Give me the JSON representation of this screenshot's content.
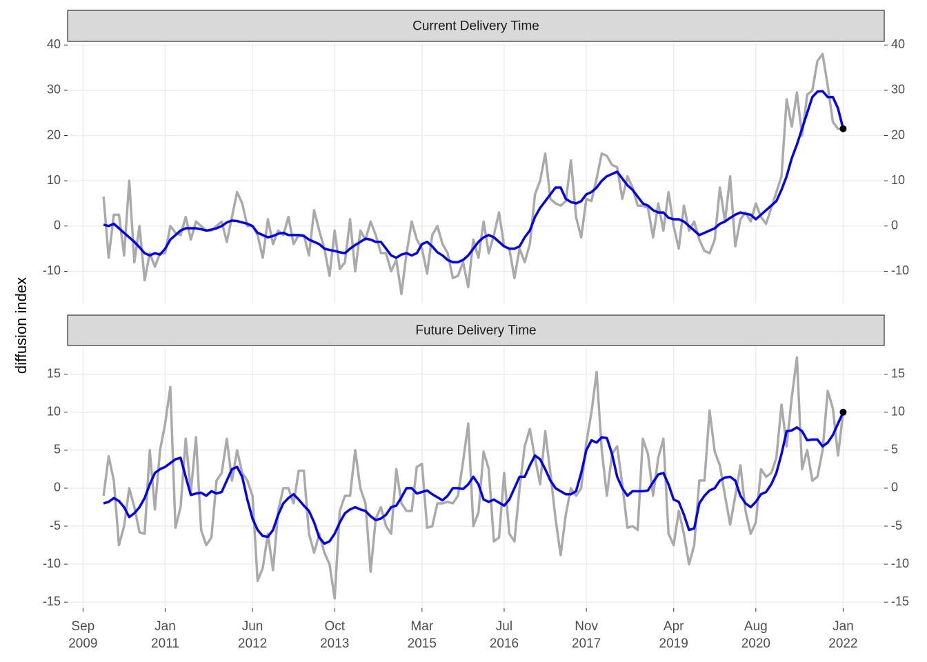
{
  "ylabel": "diffusion index",
  "chart_data": [
    {
      "type": "line",
      "title": "Current Delivery Time",
      "x": [
        "2010-01",
        "2010-02",
        "2010-03",
        "2010-04",
        "2010-05",
        "2010-06",
        "2010-07",
        "2010-08",
        "2010-09",
        "2010-10",
        "2010-11",
        "2010-12",
        "2011-01",
        "2011-02",
        "2011-03",
        "2011-04",
        "2011-05",
        "2011-06",
        "2011-07",
        "2011-08",
        "2011-09",
        "2011-10",
        "2011-11",
        "2011-12",
        "2012-01",
        "2012-02",
        "2012-03",
        "2012-04",
        "2012-05",
        "2012-06",
        "2012-07",
        "2012-08",
        "2012-09",
        "2012-10",
        "2012-11",
        "2012-12",
        "2013-01",
        "2013-02",
        "2013-03",
        "2013-04",
        "2013-05",
        "2013-06",
        "2013-07",
        "2013-08",
        "2013-09",
        "2013-10",
        "2013-11",
        "2013-12",
        "2014-01",
        "2014-02",
        "2014-03",
        "2014-04",
        "2014-05",
        "2014-06",
        "2014-07",
        "2014-08",
        "2014-09",
        "2014-10",
        "2014-11",
        "2014-12",
        "2015-01",
        "2015-02",
        "2015-03",
        "2015-04",
        "2015-05",
        "2015-06",
        "2015-07",
        "2015-08",
        "2015-09",
        "2015-10",
        "2015-11",
        "2015-12",
        "2016-01",
        "2016-02",
        "2016-03",
        "2016-04",
        "2016-05",
        "2016-06",
        "2016-07",
        "2016-08",
        "2016-09",
        "2016-10",
        "2016-11",
        "2016-12",
        "2017-01",
        "2017-02",
        "2017-03",
        "2017-04",
        "2017-05",
        "2017-06",
        "2017-07",
        "2017-08",
        "2017-09",
        "2017-10",
        "2017-11",
        "2017-12",
        "2018-01",
        "2018-02",
        "2018-03",
        "2018-04",
        "2018-05",
        "2018-06",
        "2018-07",
        "2018-08",
        "2018-09",
        "2018-10",
        "2018-11",
        "2018-12",
        "2019-01",
        "2019-02",
        "2019-03",
        "2019-04",
        "2019-05",
        "2019-06",
        "2019-07",
        "2019-08",
        "2019-09",
        "2019-10",
        "2019-11",
        "2019-12",
        "2020-01",
        "2020-02",
        "2020-03",
        "2020-04",
        "2020-05",
        "2020-06",
        "2020-07",
        "2020-08",
        "2020-09",
        "2020-10",
        "2020-11",
        "2020-12",
        "2021-01",
        "2021-02",
        "2021-03",
        "2021-04",
        "2021-05",
        "2021-06",
        "2021-07",
        "2021-08",
        "2021-09",
        "2021-10",
        "2021-11",
        "2021-12",
        "2022-01"
      ],
      "series": [
        {
          "color": "#aaaaaa",
          "values": [
            6.5,
            -7,
            2.5,
            2.5,
            -6.5,
            10,
            -8,
            0,
            -12,
            -6,
            -9,
            -6,
            -6,
            0,
            -1.5,
            -2,
            2,
            -3,
            1,
            0,
            -1,
            -1,
            0,
            1,
            -3.5,
            2,
            7.5,
            5,
            0,
            0,
            -2,
            -7,
            1.5,
            -4,
            -1,
            -2,
            2,
            -4,
            -2,
            -2,
            -6.5,
            3.5,
            -1,
            -5,
            -11,
            -1,
            -9.5,
            -8,
            1.5,
            -10,
            -1,
            -3,
            1,
            -2,
            -6,
            -6,
            -10,
            -7.5,
            -15,
            -6,
            1,
            -3,
            -5,
            -10.5,
            -2,
            0,
            -4,
            -6,
            -11.5,
            -11,
            -8,
            -13.5,
            -3,
            -7,
            1,
            -6,
            -2,
            3,
            -4.5,
            -5,
            -11.5,
            -5,
            -8,
            -4,
            7,
            10,
            16,
            6,
            5,
            4.5,
            5.5,
            14.5,
            2,
            -2.5,
            6,
            5.5,
            10.5,
            16,
            15.5,
            13.5,
            13,
            6,
            11,
            8.5,
            4.5,
            4.5,
            4,
            -2.5,
            5,
            -1,
            7.5,
            0,
            -5,
            4.5,
            -1,
            1,
            -3,
            -5.5,
            -6,
            -3,
            8.5,
            1,
            11,
            -4.5,
            1.5,
            3,
            1,
            5,
            2,
            0.5,
            4,
            7.5,
            11,
            28,
            22,
            29.5,
            20,
            29,
            30,
            36.5,
            38,
            31,
            23,
            21.5,
            21.5
          ]
        },
        {
          "color": "#0000ff",
          "endpoint": true,
          "values": [
            0.3,
            0,
            0.5,
            -0.5,
            -1.5,
            -2.5,
            -3.5,
            -4.7,
            -6,
            -6.5,
            -6,
            -6.3,
            -5,
            -3,
            -2,
            -1,
            -0.5,
            -0.5,
            -0.5,
            -0.7,
            -1,
            -0.8,
            -0.5,
            0,
            0.8,
            1.2,
            1.1,
            0.8,
            0.5,
            0,
            -1.5,
            -2,
            -2.5,
            -2.2,
            -1.7,
            -1.5,
            -2,
            -2,
            -2,
            -2.2,
            -3,
            -3.5,
            -4,
            -5,
            -5.3,
            -5.5,
            -5.8,
            -6,
            -5,
            -4.2,
            -3.5,
            -2.8,
            -3,
            -3.5,
            -3.5,
            -5,
            -6.5,
            -7,
            -6.3,
            -6,
            -6.5,
            -6,
            -4,
            -3.5,
            -4.5,
            -5.8,
            -6.5,
            -7.5,
            -8,
            -8,
            -7.5,
            -6.5,
            -5,
            -3.5,
            -2.5,
            -2,
            -2.5,
            -3.5,
            -4.5,
            -5,
            -5,
            -4.5,
            -2.5,
            -1,
            2,
            4,
            5.5,
            7,
            8.5,
            8.5,
            6,
            5.3,
            5,
            5.5,
            7,
            7.5,
            8.5,
            10,
            11,
            11.5,
            12,
            10.5,
            9,
            8,
            6.5,
            5,
            4.5,
            3.5,
            3,
            3,
            1.8,
            1.5,
            1.5,
            1,
            0,
            -1,
            -2,
            -1.5,
            -1,
            -0.5,
            0.5,
            1,
            1.8,
            2.5,
            3,
            2.7,
            2.5,
            1.5,
            2.5,
            3.5,
            4.5,
            5.5,
            8,
            11,
            15,
            18,
            21.5,
            25,
            28.5,
            29.7,
            29.8,
            28.5,
            28.5,
            26,
            21.5
          ]
        }
      ],
      "xlim": [
        "2009-06",
        "2022-09"
      ],
      "xticks": [
        "2009-09",
        "2011-01",
        "2012-06",
        "2013-10",
        "2015-03",
        "2016-07",
        "2017-11",
        "2019-04",
        "2020-08",
        "2022-01"
      ],
      "ylim": [
        -17.1,
        40.5
      ],
      "yticks": [
        -10,
        0,
        10,
        20,
        30,
        40
      ],
      "grid": true
    },
    {
      "type": "line",
      "title": "Future Delivery Time",
      "x": [
        "2010-01",
        "2010-02",
        "2010-03",
        "2010-04",
        "2010-05",
        "2010-06",
        "2010-07",
        "2010-08",
        "2010-09",
        "2010-10",
        "2010-11",
        "2010-12",
        "2011-01",
        "2011-02",
        "2011-03",
        "2011-04",
        "2011-05",
        "2011-06",
        "2011-07",
        "2011-08",
        "2011-09",
        "2011-10",
        "2011-11",
        "2011-12",
        "2012-01",
        "2012-02",
        "2012-03",
        "2012-04",
        "2012-05",
        "2012-06",
        "2012-07",
        "2012-08",
        "2012-09",
        "2012-10",
        "2012-11",
        "2012-12",
        "2013-01",
        "2013-02",
        "2013-03",
        "2013-04",
        "2013-05",
        "2013-06",
        "2013-07",
        "2013-08",
        "2013-09",
        "2013-10",
        "2013-11",
        "2013-12",
        "2014-01",
        "2014-02",
        "2014-03",
        "2014-04",
        "2014-05",
        "2014-06",
        "2014-07",
        "2014-08",
        "2014-09",
        "2014-10",
        "2014-11",
        "2014-12",
        "2015-01",
        "2015-02",
        "2015-03",
        "2015-04",
        "2015-05",
        "2015-06",
        "2015-07",
        "2015-08",
        "2015-09",
        "2015-10",
        "2015-11",
        "2015-12",
        "2016-01",
        "2016-02",
        "2016-03",
        "2016-04",
        "2016-05",
        "2016-06",
        "2016-07",
        "2016-08",
        "2016-09",
        "2016-10",
        "2016-11",
        "2016-12",
        "2017-01",
        "2017-02",
        "2017-03",
        "2017-04",
        "2017-05",
        "2017-06",
        "2017-07",
        "2017-08",
        "2017-09",
        "2017-10",
        "2017-11",
        "2017-12",
        "2018-01",
        "2018-02",
        "2018-03",
        "2018-04",
        "2018-05",
        "2018-06",
        "2018-07",
        "2018-08",
        "2018-09",
        "2018-10",
        "2018-11",
        "2018-12",
        "2019-01",
        "2019-02",
        "2019-03",
        "2019-04",
        "2019-05",
        "2019-06",
        "2019-07",
        "2019-08",
        "2019-09",
        "2019-10",
        "2019-11",
        "2019-12",
        "2020-01",
        "2020-02",
        "2020-03",
        "2020-04",
        "2020-05",
        "2020-06",
        "2020-07",
        "2020-08",
        "2020-09",
        "2020-10",
        "2020-11",
        "2020-12",
        "2021-01",
        "2021-02",
        "2021-03",
        "2021-04",
        "2021-05",
        "2021-06",
        "2021-07",
        "2021-08",
        "2021-09",
        "2021-10",
        "2021-11",
        "2021-12",
        "2022-01"
      ],
      "series": [
        {
          "color": "#aaaaaa",
          "values": [
            -1,
            4.2,
            1,
            -7.5,
            -5,
            0,
            -2.5,
            -5.8,
            -6,
            5,
            -2.8,
            5,
            8.5,
            13.3,
            -5.2,
            -2.5,
            6.5,
            -0.5,
            6.7,
            -5.5,
            -7.5,
            -6.5,
            1,
            2,
            6.5,
            1,
            5,
            2,
            1,
            -1,
            -12.2,
            -10.5,
            -6,
            -10.8,
            -3,
            0,
            0,
            -2,
            2.3,
            2.3,
            -6,
            -8.5,
            -6,
            -8.5,
            -10,
            -14.5,
            -3,
            -1,
            -1,
            5,
            0,
            -2,
            -11,
            -4,
            -2.5,
            -5,
            -6,
            2.5,
            -2,
            -3,
            -3,
            2.8,
            3.2,
            -5.2,
            -5,
            -2,
            -2,
            -1.8,
            -2,
            -1,
            3.5,
            8.5,
            -5,
            -3.2,
            4.8,
            2.5,
            -7,
            -6.5,
            2,
            -6,
            -7,
            0,
            5.5,
            7.8,
            4,
            0.5,
            7.5,
            2,
            -4,
            -8.8,
            -3.5,
            0,
            -1,
            0,
            6,
            10,
            15.3,
            5,
            -1,
            4.5,
            5.5,
            0.5,
            -5.2,
            -5,
            -5.5,
            6.5,
            4.5,
            -1,
            4,
            6.5,
            -6,
            -7.5,
            -3,
            -6,
            -10,
            -7.5,
            1,
            1,
            10.2,
            4.8,
            3,
            -1,
            -4.8,
            -1,
            3,
            -3,
            -6,
            -4.5,
            2.5,
            1.5,
            2,
            4,
            11,
            5.5,
            12,
            17.2,
            2.5,
            5,
            1,
            1.5,
            5,
            12.8,
            10.5,
            4.3,
            10
          ]
        },
        {
          "color": "#0000ff",
          "endpoint": true,
          "values": [
            -2,
            -1.8,
            -1.3,
            -1.7,
            -2.5,
            -3.8,
            -3.3,
            -2.5,
            -1.3,
            0.5,
            2,
            2.5,
            2.8,
            3.3,
            3.8,
            4,
            1.5,
            -0.9,
            -0.7,
            -0.6,
            -1,
            -0.4,
            -0.7,
            -0.5,
            1,
            2.5,
            2.8,
            1.5,
            -1.5,
            -4,
            -5.5,
            -6.3,
            -6.4,
            -5.5,
            -3.5,
            -2,
            -1.3,
            -0.8,
            -1.5,
            -2.3,
            -3,
            -4.5,
            -6.5,
            -7.3,
            -7,
            -6,
            -4.5,
            -3.3,
            -2.8,
            -2.5,
            -2.8,
            -3,
            -3.7,
            -4.2,
            -4,
            -3.5,
            -2.5,
            -2.3,
            -1.2,
            0,
            0,
            -0.7,
            -0.5,
            -0.3,
            -0.8,
            -1.2,
            -1.6,
            -1,
            0,
            0,
            -0.1,
            0.5,
            1.5,
            0.5,
            -1.5,
            -1.8,
            -1.5,
            -1.9,
            -2.3,
            -1.5,
            0,
            1.5,
            1.5,
            3,
            4.3,
            3.8,
            2.5,
            1,
            0,
            -0.4,
            -0.8,
            -0.8,
            -0.4,
            2,
            5,
            6.3,
            6,
            6.7,
            6.6,
            4.5,
            1.5,
            0,
            -1,
            -0.4,
            -0.4,
            -0.4,
            -0.3,
            0.8,
            1.8,
            2,
            0.5,
            -1.5,
            -1.8,
            -3.5,
            -5.5,
            -5.3,
            -2,
            -1,
            -0.3,
            0,
            1,
            1.4,
            1.5,
            1,
            -1,
            -2,
            -2.5,
            -1.8,
            -0.8,
            -0.5,
            0.5,
            2,
            4.5,
            7.5,
            7.6,
            8,
            7.5,
            6.3,
            6.4,
            6.4,
            5.5,
            6,
            7,
            8.5,
            10
          ]
        }
      ],
      "xlim": [
        "2009-06",
        "2022-09"
      ],
      "xticks": [
        {
          "value": "2009-09",
          "label": "Sep\n2009"
        },
        {
          "value": "2011-01",
          "label": "Jan\n2011"
        },
        {
          "value": "2012-06",
          "label": "Jun\n2012"
        },
        {
          "value": "2013-10",
          "label": "Oct\n2013"
        },
        {
          "value": "2015-03",
          "label": "Mar\n2015"
        },
        {
          "value": "2016-07",
          "label": "Jul\n2016"
        },
        {
          "value": "2017-11",
          "label": "Nov\n2017"
        },
        {
          "value": "2019-04",
          "label": "Apr\n2019"
        },
        {
          "value": "2020-08",
          "label": "Aug\n2020"
        },
        {
          "value": "2022-01",
          "label": "Jan\n2022"
        }
      ],
      "ylim": [
        -15.8,
        18.6
      ],
      "yticks": [
        -15,
        -10,
        -5,
        0,
        5,
        10,
        15
      ],
      "grid": true
    }
  ]
}
